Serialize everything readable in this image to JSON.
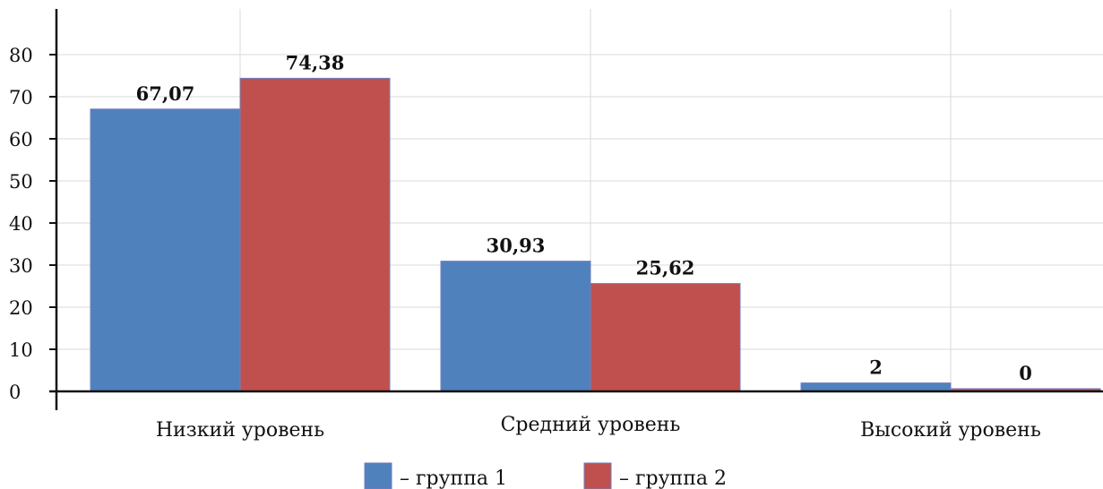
{
  "chart_data": {
    "type": "bar",
    "categories": [
      "Низкий уровень",
      "Средний уровень",
      "Высокий уровень"
    ],
    "series": [
      {
        "name": "– группа 1",
        "color": "#4f81bd",
        "values": [
          67.07,
          30.93,
          2
        ],
        "labels": [
          "67,07",
          "30,93",
          "2"
        ]
      },
      {
        "name": "– группа 2",
        "color": "#c0504d",
        "values": [
          74.38,
          25.62,
          0
        ],
        "labels": [
          "74,38",
          "25,62",
          "0"
        ]
      }
    ],
    "yticks": [
      {
        "value": 0,
        "label": "0"
      },
      {
        "value": 10,
        "label": "10"
      },
      {
        "value": 20,
        "label": "20"
      },
      {
        "value": 30,
        "label": "30"
      },
      {
        "value": 40,
        "label": "40"
      },
      {
        "value": 50,
        "label": "50"
      },
      {
        "value": 60,
        "label": "60"
      },
      {
        "value": 70,
        "label": "70"
      },
      {
        "value": 80,
        "label": "80"
      }
    ],
    "ylim": [
      0,
      82
    ],
    "grid": true,
    "legend": "bottom-center",
    "title": "",
    "xlabel": "",
    "ylabel": ""
  }
}
